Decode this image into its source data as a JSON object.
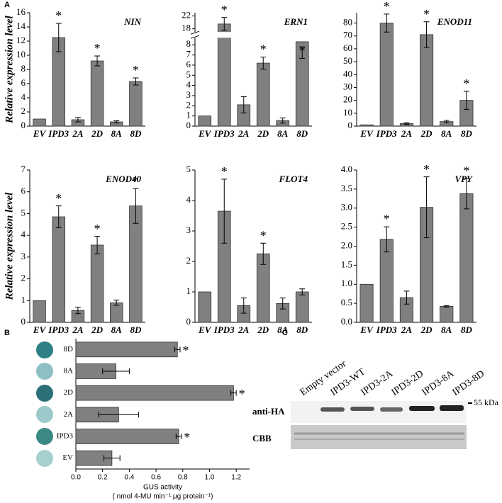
{
  "panels": [
    "A",
    "B",
    "C"
  ],
  "chart_data": [
    {
      "type": "bar",
      "title": "NIN",
      "ylabel": "Relative expression level",
      "categories": [
        "EV",
        "IPD3",
        "2A",
        "2D",
        "8A",
        "8D"
      ],
      "values": [
        1.0,
        12.5,
        0.9,
        9.2,
        0.6,
        6.3
      ],
      "errors": [
        null,
        2.0,
        0.3,
        0.7,
        0.15,
        0.5
      ],
      "marks": [
        null,
        "*",
        null,
        "*",
        null,
        "*"
      ],
      "color": "#808080",
      "ylim": [
        0,
        16
      ],
      "yticks": [
        0,
        2,
        4,
        6,
        8,
        10,
        12,
        14,
        16
      ]
    },
    {
      "type": "bar",
      "title": "ERN1",
      "categories": [
        "EV",
        "IPD3",
        "2A",
        "2D",
        "8A",
        "8D"
      ],
      "values": [
        1.0,
        19.5,
        2.1,
        6.2,
        0.55,
        8.3
      ],
      "errors": [
        null,
        2.0,
        0.8,
        0.6,
        0.25,
        0.5
      ],
      "marks": [
        null,
        "*",
        null,
        "*",
        null,
        "*"
      ],
      "color": "#808080",
      "ylim": [
        0,
        23
      ],
      "ybreak": [
        8.7,
        17
      ],
      "yticks": [
        0,
        1,
        2,
        3,
        4,
        5,
        6,
        7,
        8,
        18,
        22
      ]
    },
    {
      "type": "bar",
      "title": "ENOD11",
      "categories": [
        "EV",
        "IPD3",
        "2A",
        "2D",
        "8A",
        "8D"
      ],
      "values": [
        1,
        80,
        2,
        71,
        3.5,
        20
      ],
      "errors": [
        null,
        7,
        0.6,
        10,
        1,
        7
      ],
      "marks": [
        null,
        "*",
        null,
        "*",
        null,
        "*"
      ],
      "color": "#808080",
      "ylim": [
        0,
        88
      ],
      "yticks": [
        0,
        10,
        20,
        30,
        40,
        50,
        60,
        70,
        80
      ]
    },
    {
      "type": "bar",
      "title": "ENOD40",
      "ylabel": "Relative expression level",
      "categories": [
        "EV",
        "IPD3",
        "2A",
        "2D",
        "8A",
        "8D"
      ],
      "values": [
        1.0,
        4.85,
        0.55,
        3.55,
        0.9,
        5.35
      ],
      "errors": [
        null,
        0.5,
        0.15,
        0.4,
        0.12,
        0.8
      ],
      "marks": [
        null,
        "*",
        null,
        "*",
        null,
        "*"
      ],
      "color": "#808080",
      "ylim": [
        0,
        7
      ],
      "yticks": [
        0,
        1,
        2,
        3,
        4,
        5,
        6,
        7
      ]
    },
    {
      "type": "bar",
      "title": "FLOT4",
      "categories": [
        "EV",
        "IPD3",
        "2A",
        "2D",
        "8A",
        "8D"
      ],
      "values": [
        1.0,
        3.65,
        0.55,
        2.25,
        0.62,
        1.0
      ],
      "errors": [
        null,
        1.05,
        0.25,
        0.35,
        0.18,
        0.1
      ],
      "marks": [
        null,
        "*",
        null,
        "*",
        null,
        null
      ],
      "color": "#808080",
      "ylim": [
        0,
        5
      ],
      "yticks": [
        0,
        1,
        2,
        3,
        4,
        5
      ]
    },
    {
      "type": "bar",
      "title": "VPY",
      "categories": [
        "EV",
        "IPD3",
        "2A",
        "2D",
        "8A",
        "8D"
      ],
      "values": [
        1.0,
        2.18,
        0.65,
        3.02,
        0.42,
        3.38
      ],
      "errors": [
        null,
        0.33,
        0.17,
        0.8,
        0.02,
        0.4
      ],
      "marks": [
        null,
        "*",
        null,
        "*",
        null,
        "*"
      ],
      "color": "#808080",
      "ylim": [
        0,
        4
      ],
      "yticks": [
        {
          "value": 0,
          "label": "0.0"
        },
        {
          "value": 0.5,
          "label": "0.5"
        },
        {
          "value": 1,
          "label": "1.0"
        },
        {
          "value": 1.5,
          "label": "1.5"
        },
        {
          "value": 2,
          "label": "2.0"
        },
        {
          "value": 2.5,
          "label": "2.5"
        },
        {
          "value": 3,
          "label": "3.0"
        },
        {
          "value": 3.5,
          "label": "3.5"
        },
        {
          "value": 4,
          "label": "4.0"
        }
      ]
    },
    {
      "type": "barh",
      "xlabel": "GUS activity",
      "xlabel_unit": "( nmol 4-MU min⁻¹ μg protein⁻¹)",
      "categories": [
        "8D",
        "8A",
        "2D",
        "2A",
        "IPD3",
        "EV"
      ],
      "values": [
        0.76,
        0.3,
        1.18,
        0.32,
        0.77,
        0.27
      ],
      "errors": [
        0.02,
        0.1,
        0.02,
        0.15,
        0.02,
        0.06
      ],
      "marks": [
        "*",
        null,
        "*",
        null,
        "*",
        null
      ],
      "color": "#808080",
      "xlim": [
        0,
        1.3
      ],
      "xticks": [
        {
          "value": 0,
          "label": "0.0"
        },
        {
          "value": 0.2,
          "label": "0.2"
        },
        {
          "value": 0.4,
          "label": "0.4"
        },
        {
          "value": 0.6,
          "label": "0.6"
        },
        {
          "value": 0.8,
          "label": "0.8"
        },
        {
          "value": 1,
          "label": "1.0"
        },
        {
          "value": 1.2,
          "label": "1.2"
        }
      ]
    }
  ],
  "blot": {
    "lanes": [
      "Empty vector",
      "IPD3-WT",
      "IPD3-2A",
      "IPD3-2D",
      "IPD3-8A",
      "IPD3-8D"
    ],
    "rows": [
      "anti-HA",
      "CBB"
    ],
    "marker": "55 kDa"
  }
}
